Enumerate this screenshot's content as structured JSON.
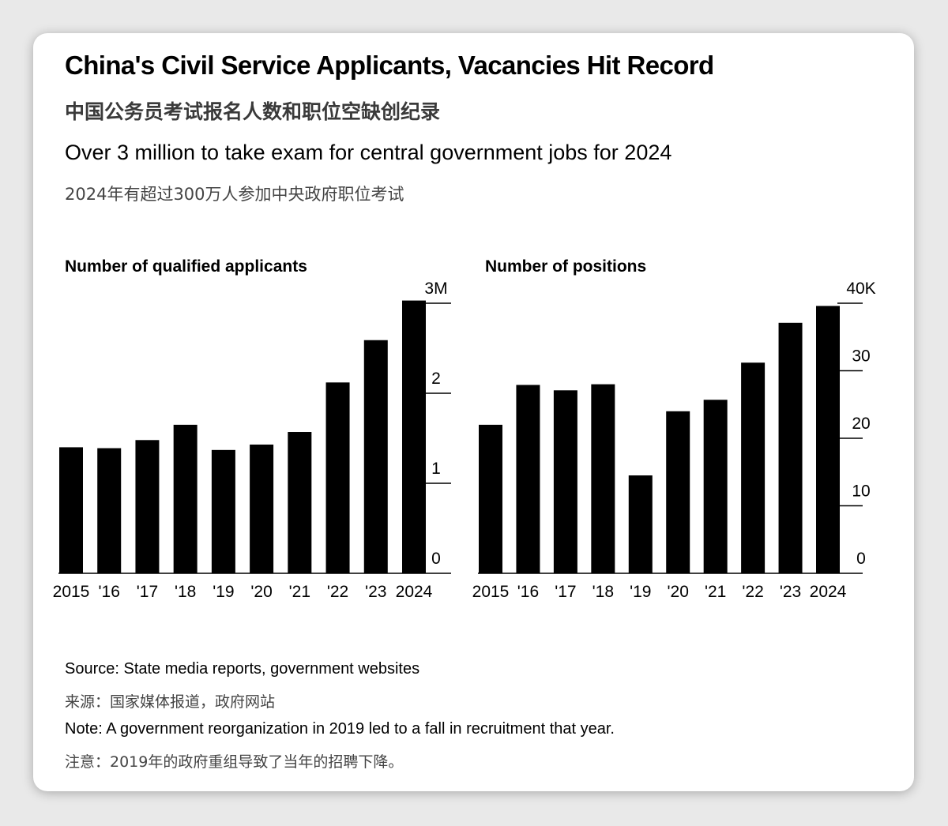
{
  "header": {
    "title": "China's Civil Service Applicants, Vacancies Hit Record",
    "title_cn": "中国公务员考试报名人数和职位空缺创纪录",
    "subtitle": "Over 3 million to take exam for central government jobs for 2024",
    "subtitle_cn": "2024年有超过300万人参加中央政府职位考试"
  },
  "chart_data": [
    {
      "type": "bar",
      "title": "Number of qualified applicants",
      "categories": [
        "2015",
        "'16",
        "'17",
        "'18",
        "'19",
        "'20",
        "'21",
        "'22",
        "'23",
        "2024"
      ],
      "values": [
        1.4,
        1.39,
        1.48,
        1.65,
        1.37,
        1.43,
        1.57,
        2.12,
        2.59,
        3.03
      ],
      "yticks": [
        "0",
        "1",
        "2",
        "3M"
      ],
      "ylim": [
        0,
        3
      ],
      "yaxis_side": "right",
      "grid": false,
      "color": "#000000"
    },
    {
      "type": "bar",
      "title": "Number of positions",
      "categories": [
        "2015",
        "'16",
        "'17",
        "'18",
        "'19",
        "'20",
        "'21",
        "'22",
        "'23",
        "2024"
      ],
      "values": [
        22,
        27.9,
        27.1,
        28,
        14.5,
        24,
        25.7,
        31.2,
        37.1,
        39.6
      ],
      "yticks": [
        "0",
        "10",
        "20",
        "30",
        "40K"
      ],
      "ylim": [
        0,
        40
      ],
      "yaxis_side": "right",
      "grid": false,
      "color": "#000000"
    }
  ],
  "footer": {
    "source": "Source: State media reports, government websites",
    "source_cn": "来源：国家媒体报道，政府网站",
    "note": "Note: A government reorganization in 2019 led to a fall in recruitment that year.",
    "note_cn": "注意：2019年的政府重组导致了当年的招聘下降。"
  }
}
